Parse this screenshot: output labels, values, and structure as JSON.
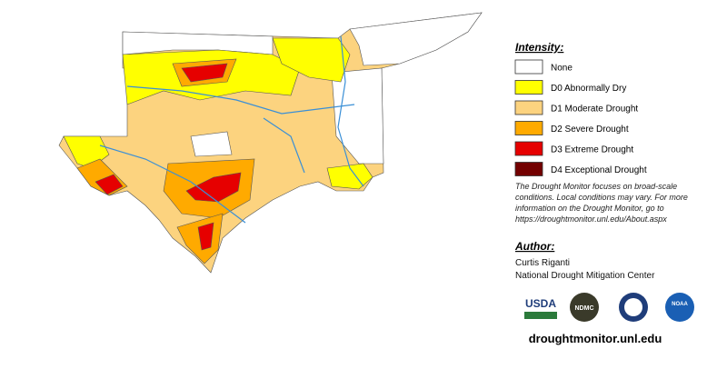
{
  "legend": {
    "title": "Intensity:",
    "items": [
      {
        "label": "None",
        "color": "#ffffff"
      },
      {
        "label": "D0 Abnormally Dry",
        "color": "#ffff00"
      },
      {
        "label": "D1 Moderate Drought",
        "color": "#fcd37f"
      },
      {
        "label": "D2 Severe Drought",
        "color": "#ffaa00"
      },
      {
        "label": "D3 Extreme Drought",
        "color": "#e60000"
      },
      {
        "label": "D4 Exceptional Drought",
        "color": "#730000"
      }
    ]
  },
  "note": [
    "The Drought Monitor focuses on broad-scale",
    "conditions. Local conditions may vary. For more",
    "information on the Drought Monitor, go to",
    "https://droughtmonitor.unl.edu/About.aspx"
  ],
  "author": {
    "title": "Author:",
    "lines": [
      "Curtis Riganti",
      "National Drought Mitigation Center"
    ]
  },
  "logos": [
    "USDA",
    "NDMC",
    "NOAA"
  ],
  "url": "droughtmonitor.unl.edu"
}
